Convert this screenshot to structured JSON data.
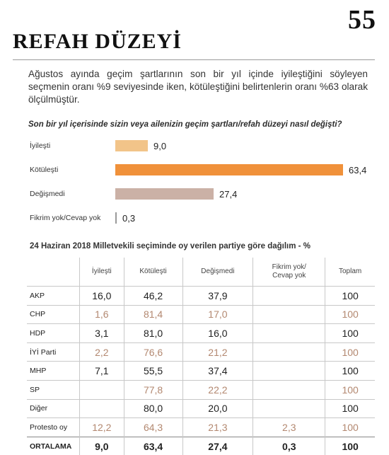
{
  "page_number": "55",
  "title": "REFAH DÜZEYİ",
  "intro": "Ağustos ayında geçim şartlarının son bir yıl içinde iyileştiğini söyleyen seçmenin oranı %9 seviyesinde iken, kötüleştiğini belirtenlerin oranı %63 olarak ölçülmüştür.",
  "question": "Son bir yıl içerisinde sizin veya ailenizin geçim şartları/refah düzeyi nasıl değişti?",
  "chart_data": {
    "type": "bar",
    "orientation": "horizontal",
    "categories": [
      "İyileşti",
      "Kötüleşti",
      "Değişmedi",
      "Fikrim yok/Cevap yok"
    ],
    "values": [
      9.0,
      63.4,
      27.4,
      0.3
    ],
    "value_labels": [
      "9,0",
      "63,4",
      "27,4",
      "0,3"
    ],
    "colors": [
      "#f2c489",
      "#f0913a",
      "#cbb1a6",
      "#9a9a9a"
    ]
  },
  "table": {
    "title": "24 Haziran 2018 Milletvekili seçiminde oy verilen partiye göre dağılım - %",
    "headers": [
      "",
      "İyileşti",
      "Kötüleşti",
      "Değişmedi",
      "Fikrim yok/\nCevap yok",
      "Toplam"
    ],
    "rows": [
      {
        "cells": [
          "AKP",
          "16,0",
          "46,2",
          "37,9",
          "",
          "100"
        ],
        "tone": "dark"
      },
      {
        "cells": [
          "CHP",
          "1,6",
          "81,4",
          "17,0",
          "",
          "100"
        ],
        "tone": "light"
      },
      {
        "cells": [
          "HDP",
          "3,1",
          "81,0",
          "16,0",
          "",
          "100"
        ],
        "tone": "dark"
      },
      {
        "cells": [
          "İYİ Parti",
          "2,2",
          "76,6",
          "21,2",
          "",
          "100"
        ],
        "tone": "light"
      },
      {
        "cells": [
          "MHP",
          "7,1",
          "55,5",
          "37,4",
          "",
          "100"
        ],
        "tone": "dark"
      },
      {
        "cells": [
          "SP",
          "",
          "77,8",
          "22,2",
          "",
          "100"
        ],
        "tone": "light"
      },
      {
        "cells": [
          "Diğer",
          "",
          "80,0",
          "20,0",
          "",
          "100"
        ],
        "tone": "dark"
      },
      {
        "cells": [
          "Protesto oy",
          "12,2",
          "64,3",
          "21,3",
          "2,3",
          "100"
        ],
        "tone": "light"
      },
      {
        "cells": [
          "ORTALAMA",
          "9,0",
          "63,4",
          "27,4",
          "0,3",
          "100"
        ],
        "tone": "avg"
      }
    ]
  }
}
